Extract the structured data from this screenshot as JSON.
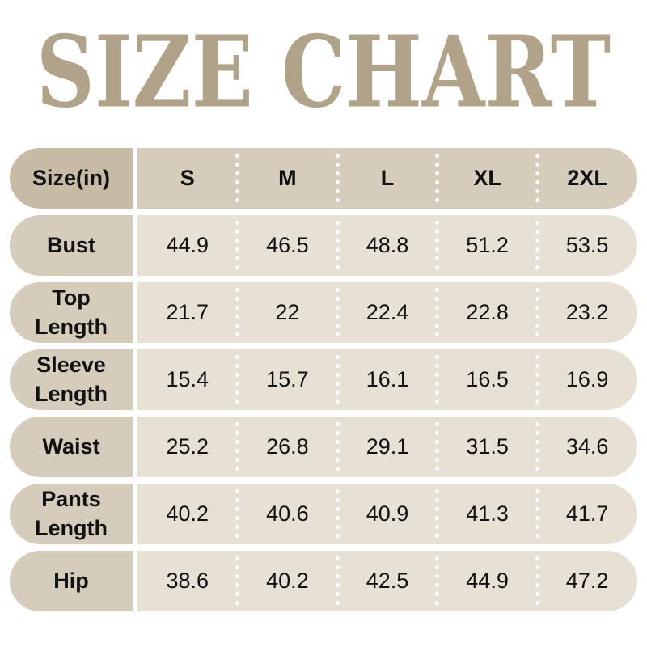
{
  "colors": {
    "title": "#b1a38a",
    "header_label_bg": "#c7bba6",
    "header_data_bg": "#d5ccbc",
    "row_label_bg": "#d6ccbc",
    "row_data_bg": "#e7e1d5",
    "text": "#111111",
    "page_bg": "#ffffff",
    "dot": "#ffffff"
  },
  "chart_data": {
    "type": "table",
    "title": "SIZE CHART",
    "unit_label": "Size(in)",
    "columns": [
      "S",
      "M",
      "L",
      "XL",
      "2XL"
    ],
    "rows": [
      {
        "label": "Bust",
        "values": [
          44.9,
          46.5,
          48.8,
          51.2,
          53.5
        ]
      },
      {
        "label": "Top Length",
        "values": [
          21.7,
          22,
          22.4,
          22.8,
          23.2
        ]
      },
      {
        "label": "Sleeve Length",
        "values": [
          15.4,
          15.7,
          16.1,
          16.5,
          16.9
        ]
      },
      {
        "label": "Waist",
        "values": [
          25.2,
          26.8,
          29.1,
          31.5,
          34.6
        ]
      },
      {
        "label": "Pants Length",
        "values": [
          40.2,
          40.6,
          40.9,
          41.3,
          41.7
        ]
      },
      {
        "label": "Hip",
        "values": [
          38.6,
          40.2,
          42.5,
          44.9,
          47.2
        ]
      }
    ]
  }
}
